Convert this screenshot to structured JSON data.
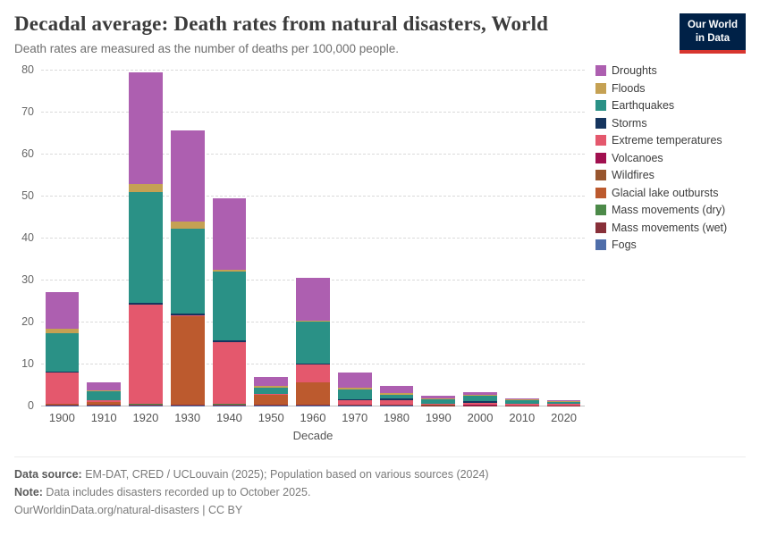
{
  "header": {
    "title": "Decadal average: Death rates from natural disasters, World",
    "subtitle": "Death rates are measured as the number of deaths per 100,000 people.",
    "logo": {
      "line1": "Our World",
      "line2": "in Data"
    }
  },
  "colors": {
    "logo_bg": "#002147",
    "logo_accent": "#d7352e",
    "background": "#ffffff"
  },
  "chart_data": {
    "type": "bar",
    "stacked": true,
    "title": "Decadal average: Death rates from natural disasters, World",
    "xlabel": "Decade",
    "ylabel": "",
    "ylim": [
      0,
      80
    ],
    "yticks": [
      0,
      10,
      20,
      30,
      40,
      50,
      60,
      70,
      80
    ],
    "grid": "dashed-horizontal",
    "legend_position": "right",
    "categories": [
      "1900",
      "1910",
      "1920",
      "1930",
      "1940",
      "1950",
      "1960",
      "1970",
      "1980",
      "1990",
      "2000",
      "2010",
      "2020"
    ],
    "series": [
      {
        "name": "Droughts",
        "color": "#ad5fb0",
        "values": [
          8.8,
          2.0,
          26.5,
          21.7,
          16.9,
          2.2,
          10.2,
          3.5,
          1.8,
          0.55,
          0.6,
          0.25,
          0.2
        ]
      },
      {
        "name": "Floods",
        "color": "#c5a153",
        "values": [
          1.0,
          0.25,
          2.0,
          1.7,
          0.55,
          0.35,
          0.3,
          0.4,
          0.3,
          0.2,
          0.25,
          0.15,
          0.1
        ]
      },
      {
        "name": "Earthquakes",
        "color": "#2a9186",
        "values": [
          9.1,
          2.0,
          26.3,
          20.3,
          16.4,
          1.4,
          9.9,
          2.4,
          1.0,
          1.0,
          1.4,
          0.75,
          0.4
        ]
      },
      {
        "name": "Storms",
        "color": "#15355e",
        "values": [
          0.3,
          0.1,
          0.5,
          0.3,
          0.3,
          0.1,
          0.25,
          0.3,
          0.25,
          0.15,
          0.3,
          0.1,
          0.05
        ]
      },
      {
        "name": "Extreme temperatures",
        "color": "#e4586d",
        "values": [
          7.4,
          0.35,
          23.6,
          0.3,
          14.7,
          0.2,
          4.3,
          0.9,
          1.1,
          0.2,
          0.6,
          0.3,
          0.35
        ]
      },
      {
        "name": "Volcanoes",
        "color": "#a1104f",
        "values": [
          0.1,
          0.05,
          0.05,
          0.02,
          0.02,
          0.05,
          0.02,
          0.1,
          0.1,
          0.05,
          0.01,
          0.01,
          0.01
        ]
      },
      {
        "name": "Wildfires",
        "color": "#98562e",
        "values": [
          0.02,
          0.02,
          0.02,
          0.02,
          0.02,
          0.02,
          0.02,
          0.02,
          0.02,
          0.02,
          0.02,
          0.01,
          0.01
        ]
      },
      {
        "name": "Glacial lake outbursts",
        "color": "#bc5a2e",
        "values": [
          0.05,
          0.6,
          0.05,
          21.0,
          0.05,
          2.3,
          5.3,
          0.05,
          0.02,
          0.01,
          0.01,
          0.01,
          0.01
        ]
      },
      {
        "name": "Mass movements (dry)",
        "color": "#4c8a49",
        "values": [
          0.05,
          0.05,
          0.05,
          0.05,
          0.05,
          0.05,
          0.05,
          0.02,
          0.02,
          0.02,
          0.01,
          0.01,
          0.01
        ]
      },
      {
        "name": "Mass movements (wet)",
        "color": "#883039",
        "values": [
          0.2,
          0.15,
          0.25,
          0.15,
          0.3,
          0.1,
          0.15,
          0.1,
          0.1,
          0.05,
          0.05,
          0.05,
          0.03
        ]
      },
      {
        "name": "Fogs",
        "color": "#4f6eaa",
        "values": [
          0.05,
          0.02,
          0.05,
          0.02,
          0.02,
          0.02,
          0.02,
          0.02,
          0.02,
          0.01,
          0.01,
          0.01,
          0.01
        ]
      }
    ]
  },
  "footer": {
    "source_label": "Data source:",
    "source_text": " EM-DAT, CRED / UCLouvain (2025); Population based on various sources (2024)",
    "note_label": "Note:",
    "note_text": " Data includes disasters recorded up to October 2025.",
    "license": "OurWorldinData.org/natural-disasters | CC BY"
  }
}
